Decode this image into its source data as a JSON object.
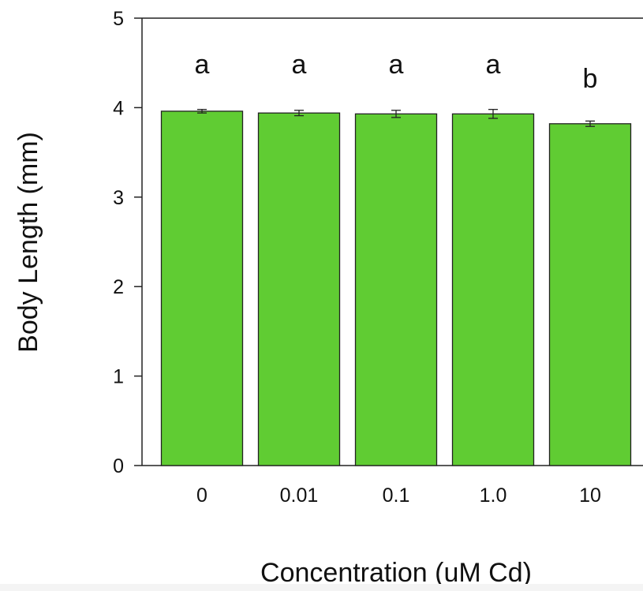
{
  "chart_data": {
    "type": "bar",
    "title": "",
    "xlabel": "Concentration (uM Cd)",
    "ylabel": "Body Length (mm)",
    "ylim": [
      0,
      5
    ],
    "yticks": [
      0,
      1,
      2,
      3,
      4,
      5
    ],
    "categories": [
      "0",
      "0.01",
      "0.1",
      "1.0",
      "10"
    ],
    "values": [
      3.96,
      3.94,
      3.93,
      3.93,
      3.82
    ],
    "error": [
      0.02,
      0.03,
      0.04,
      0.05,
      0.03
    ],
    "significance_labels": [
      "a",
      "a",
      "a",
      "a",
      "b"
    ],
    "bar_color": "#60cc33",
    "bar_edge_color": "#222222",
    "grid": false,
    "legend": "none"
  }
}
